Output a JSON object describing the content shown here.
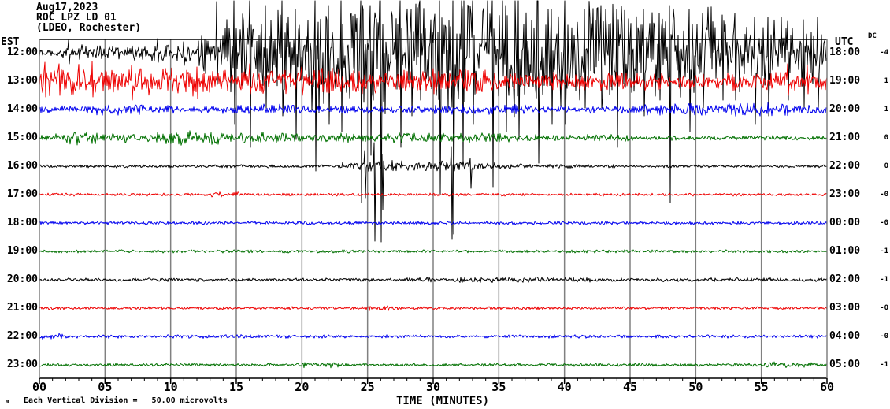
{
  "header": {
    "date": "Aug17,2023",
    "station": "ROC LPZ LD 01",
    "location": "(LDEO, Rochester)"
  },
  "axes": {
    "left_timezone_label": "EST",
    "right_timezone_label": "UTC",
    "dc_column_label": "DC",
    "x_title": "TIME (MINUTES)",
    "x_tick_labels": [
      "00",
      "05",
      "10",
      "15",
      "20",
      "25",
      "30",
      "35",
      "40",
      "45",
      "50",
      "55",
      "60"
    ],
    "footer_marker": "ᴍ",
    "footer_text": "Each Vertical Division =   50.00 microvolts"
  },
  "colors": {
    "background": "#ffffff",
    "frame": "#000000",
    "gridline": "#808080",
    "trace_black": "#000000",
    "trace_red": "#ee0000",
    "trace_blue": "#0000ee",
    "trace_green": "#007000"
  },
  "chart_data": {
    "type": "line",
    "title": "ROC LPZ LD 01 helicorder, Aug17,2023 (LDEO, Rochester)",
    "xlabel": "TIME (MINUTES)",
    "x_range_minutes": [
      0,
      60
    ],
    "minutes_per_row": 60,
    "vertical_division_microvolts": 50.0,
    "grid": "vertical lines every 5 minutes",
    "rows": [
      {
        "est": "12:00",
        "utc": "18:00",
        "dc": "-4",
        "color": "trace_black",
        "envelope": [
          [
            0,
            3,
            5
          ],
          [
            3,
            8,
            8
          ],
          [
            8,
            12,
            10
          ],
          [
            12,
            14,
            20
          ],
          [
            14,
            20,
            42
          ],
          [
            20,
            30,
            62
          ],
          [
            30,
            38,
            66
          ],
          [
            38,
            45,
            55
          ],
          [
            45,
            52,
            45
          ],
          [
            52,
            60,
            38
          ]
        ],
        "spikes": [
          [
            2.2,
            16,
            14
          ],
          [
            9,
            18,
            12
          ],
          [
            11,
            14,
            16
          ],
          [
            13.5,
            65,
            40
          ],
          [
            14.8,
            66,
            90
          ],
          [
            16,
            66,
            120
          ],
          [
            17.2,
            60,
            70
          ],
          [
            18.5,
            66,
            80
          ],
          [
            19.5,
            55,
            110
          ],
          [
            21,
            66,
            150
          ],
          [
            22,
            60,
            90
          ],
          [
            23,
            66,
            100
          ],
          [
            24.5,
            66,
            190
          ],
          [
            25.2,
            60,
            130
          ],
          [
            26,
            66,
            240
          ],
          [
            27.5,
            66,
            120
          ],
          [
            28.3,
            55,
            80
          ],
          [
            29,
            66,
            60
          ],
          [
            30.5,
            66,
            180
          ],
          [
            31.5,
            66,
            230
          ],
          [
            32.2,
            55,
            140
          ],
          [
            33,
            66,
            90
          ],
          [
            34.5,
            66,
            170
          ],
          [
            35.5,
            60,
            100
          ],
          [
            36.5,
            66,
            110
          ],
          [
            38,
            66,
            140
          ],
          [
            39,
            55,
            90
          ],
          [
            40,
            66,
            90
          ],
          [
            41.5,
            55,
            70
          ],
          [
            42.8,
            60,
            70
          ],
          [
            44,
            55,
            120
          ],
          [
            46,
            55,
            80
          ],
          [
            47.2,
            50,
            60
          ],
          [
            48,
            60,
            190
          ],
          [
            49.5,
            55,
            100
          ],
          [
            50.5,
            50,
            70
          ],
          [
            52,
            48,
            60
          ],
          [
            53,
            50,
            60
          ],
          [
            54.5,
            45,
            90
          ],
          [
            55.5,
            45,
            80
          ],
          [
            57,
            40,
            60
          ],
          [
            58.2,
            42,
            70
          ],
          [
            59.3,
            45,
            70
          ]
        ]
      },
      {
        "est": "13:00",
        "utc": "19:00",
        "dc": "1",
        "color": "trace_red",
        "envelope": [
          [
            0,
            5,
            16
          ],
          [
            5,
            12,
            15
          ],
          [
            12,
            25,
            13
          ],
          [
            25,
            35,
            12
          ],
          [
            35,
            45,
            10
          ],
          [
            45,
            55,
            9
          ],
          [
            55,
            58,
            12
          ],
          [
            58,
            60,
            9
          ]
        ],
        "spikes": [
          [
            0.4,
            24,
            20
          ],
          [
            1.5,
            22,
            18
          ],
          [
            4,
            25,
            20
          ],
          [
            7,
            20,
            24
          ],
          [
            12,
            18,
            22
          ],
          [
            16,
            22,
            16
          ],
          [
            20,
            18,
            18
          ],
          [
            30,
            16,
            16
          ],
          [
            57,
            22,
            18
          ],
          [
            58.5,
            20,
            16
          ]
        ]
      },
      {
        "est": "14:00",
        "utc": "20:00",
        "dc": "1",
        "color": "trace_blue",
        "envelope": [
          [
            0,
            4,
            4
          ],
          [
            4,
            8,
            6
          ],
          [
            8,
            15,
            4
          ],
          [
            15,
            20,
            6
          ],
          [
            20,
            30,
            4
          ],
          [
            30,
            40,
            5
          ],
          [
            40,
            46,
            4
          ],
          [
            46,
            52,
            6
          ],
          [
            52,
            57,
            7
          ],
          [
            57,
            60,
            5
          ]
        ],
        "spikes": []
      },
      {
        "est": "15:00",
        "utc": "21:00",
        "dc": "0",
        "color": "trace_green",
        "envelope": [
          [
            0,
            2,
            4
          ],
          [
            2,
            5,
            7
          ],
          [
            5,
            9,
            5
          ],
          [
            9,
            14,
            8
          ],
          [
            14,
            20,
            6
          ],
          [
            20,
            28,
            5
          ],
          [
            28,
            36,
            5
          ],
          [
            36,
            45,
            3.5
          ],
          [
            45,
            60,
            2.5
          ]
        ],
        "spikes": []
      },
      {
        "est": "16:00",
        "utc": "22:00",
        "dc": "0",
        "color": "trace_black",
        "envelope": [
          [
            0,
            23,
            1.6
          ],
          [
            23,
            25,
            4
          ],
          [
            25,
            28,
            6
          ],
          [
            28,
            33,
            6
          ],
          [
            33,
            37,
            4
          ],
          [
            37,
            45,
            2
          ],
          [
            45,
            60,
            1.6
          ]
        ],
        "spikes": [
          [
            24.8,
            20,
            40
          ],
          [
            25.5,
            30,
            95
          ],
          [
            26.1,
            15,
            55
          ],
          [
            31.4,
            25,
            92
          ],
          [
            32.8,
            10,
            28
          ]
        ]
      },
      {
        "est": "17:00",
        "utc": "23:00",
        "dc": "-0",
        "color": "trace_red",
        "envelope": [
          [
            0,
            13,
            1.5
          ],
          [
            13,
            16,
            2.5
          ],
          [
            16,
            60,
            1.5
          ]
        ],
        "spikes": []
      },
      {
        "est": "18:00",
        "utc": "00:00",
        "dc": "-0",
        "color": "trace_blue",
        "envelope": [
          [
            0,
            60,
            1.8
          ]
        ],
        "spikes": []
      },
      {
        "est": "19:00",
        "utc": "01:00",
        "dc": "-1",
        "color": "trace_green",
        "envelope": [
          [
            0,
            60,
            1.6
          ]
        ],
        "spikes": []
      },
      {
        "est": "20:00",
        "utc": "02:00",
        "dc": "-1",
        "color": "trace_black",
        "envelope": [
          [
            0,
            28,
            1.8
          ],
          [
            28,
            42,
            3
          ],
          [
            42,
            60,
            2
          ]
        ],
        "spikes": []
      },
      {
        "est": "21:00",
        "utc": "03:00",
        "dc": "-0",
        "color": "trace_red",
        "envelope": [
          [
            0,
            25,
            1.6
          ],
          [
            25,
            27,
            3
          ],
          [
            27,
            60,
            1.6
          ]
        ],
        "spikes": []
      },
      {
        "est": "22:00",
        "utc": "04:00",
        "dc": "-0",
        "color": "trace_blue",
        "envelope": [
          [
            0,
            2,
            3
          ],
          [
            2,
            60,
            1.8
          ]
        ],
        "spikes": []
      },
      {
        "est": "23:00",
        "utc": "05:00",
        "dc": "-1",
        "color": "trace_green",
        "envelope": [
          [
            0,
            20,
            1.6
          ],
          [
            20,
            23,
            3
          ],
          [
            23,
            55,
            1.6
          ],
          [
            55,
            59,
            3
          ],
          [
            59,
            60,
            1.8
          ]
        ],
        "spikes": []
      }
    ]
  }
}
